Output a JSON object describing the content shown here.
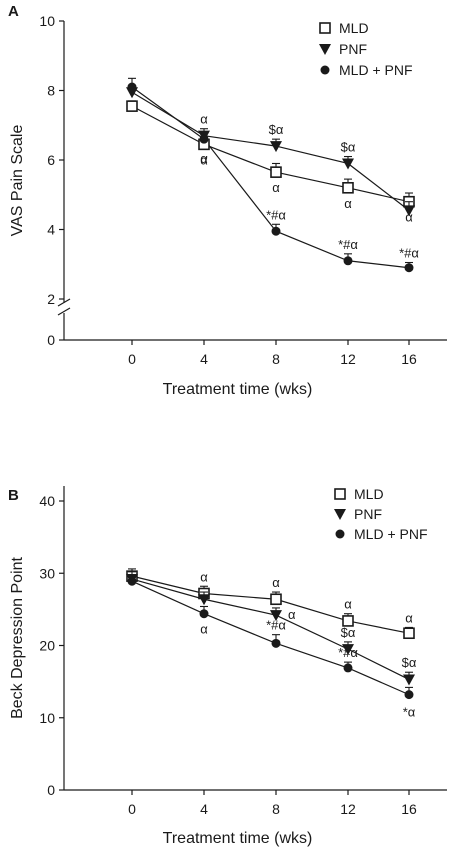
{
  "chart_data": [
    {
      "panel": "A",
      "type": "line",
      "xlabel": "Treatment time (wks)",
      "ylabel": "VAS Pain Scale",
      "x": [
        0,
        4,
        8,
        12,
        16
      ],
      "x_ticks": [
        "0",
        "4",
        "8",
        "12",
        "16"
      ],
      "y_ticks": [
        "0",
        "2",
        "4",
        "6",
        "8",
        "10"
      ],
      "ylim": [
        0,
        10
      ],
      "axis_break": true,
      "legend_position": "top-right",
      "series": [
        {
          "name": "MLD",
          "marker": "open-square",
          "values": [
            7.55,
            6.45,
            5.65,
            5.2,
            4.8
          ],
          "errors": [
            0.15,
            0.2,
            0.25,
            0.25,
            0.25
          ],
          "annotations": [
            "",
            "α",
            "α",
            "α",
            "α"
          ]
        },
        {
          "name": "PNF",
          "marker": "filled-triangle-down",
          "values": [
            7.95,
            6.7,
            6.4,
            5.9,
            4.55
          ],
          "errors": [
            0.2,
            0.2,
            0.2,
            0.2,
            0.25
          ],
          "annotations": [
            "",
            "α",
            "$α",
            "$α",
            ""
          ]
        },
        {
          "name": "MLD + PNF",
          "marker": "filled-circle",
          "values": [
            8.1,
            6.6,
            3.95,
            3.1,
            2.9
          ],
          "errors": [
            0.25,
            0.2,
            0.2,
            0.2,
            0.15
          ],
          "annotations": [
            "",
            "α",
            "*#α",
            "*#α",
            "*#α"
          ]
        }
      ]
    },
    {
      "panel": "B",
      "type": "line",
      "xlabel": "Treatment time (wks)",
      "ylabel": "Beck Depression Point",
      "x": [
        0,
        4,
        8,
        12,
        16
      ],
      "x_ticks": [
        "0",
        "4",
        "8",
        "12",
        "16"
      ],
      "y_ticks": [
        "0",
        "10",
        "20",
        "30",
        "40"
      ],
      "ylim": [
        0,
        43
      ],
      "legend_position": "top-right",
      "series": [
        {
          "name": "MLD",
          "marker": "open-square",
          "values": [
            29.6,
            27.2,
            26.4,
            23.4,
            21.7
          ],
          "errors": [
            1.0,
            1.0,
            1.0,
            1.0,
            0.8
          ],
          "annotations": [
            "",
            "α",
            "α",
            "α",
            "α"
          ]
        },
        {
          "name": "PNF",
          "marker": "filled-triangle-down",
          "values": [
            29.2,
            26.4,
            24.2,
            19.5,
            15.3
          ],
          "errors": [
            1.0,
            1.0,
            1.0,
            1.0,
            1.0
          ],
          "annotations": [
            "",
            "",
            "α",
            "$α",
            "$α"
          ]
        },
        {
          "name": "MLD + PNF",
          "marker": "filled-circle",
          "values": [
            28.9,
            24.4,
            20.3,
            16.9,
            13.2
          ],
          "errors": [
            0.8,
            1.0,
            1.2,
            0.8,
            1.0
          ],
          "annotations": [
            "",
            "α",
            "*#α",
            "*#α",
            "*α"
          ]
        }
      ]
    }
  ]
}
